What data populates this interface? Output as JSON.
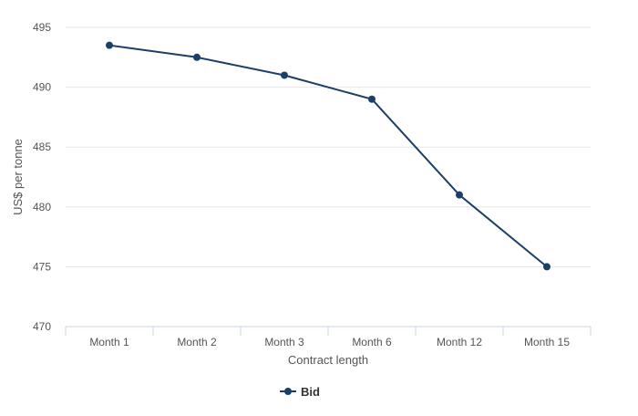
{
  "chart_data": {
    "type": "line",
    "categories": [
      "Month 1",
      "Month 2",
      "Month 3",
      "Month 6",
      "Month 12",
      "Month 15"
    ],
    "series": [
      {
        "name": "Bid",
        "values": [
          493.5,
          492.5,
          491.0,
          489.0,
          481.0,
          475.0
        ],
        "color": "#1b3f66"
      }
    ],
    "xlabel": "Contract length",
    "ylabel": "US$ per tonne",
    "ylim": [
      470,
      495
    ],
    "yticks": [
      470,
      475,
      480,
      485,
      490,
      495
    ],
    "grid": true,
    "legend_position": "bottom-center",
    "colors": {
      "grid": "#e6e6e6",
      "axis": "#ccd6eb",
      "text": "#555555"
    }
  }
}
